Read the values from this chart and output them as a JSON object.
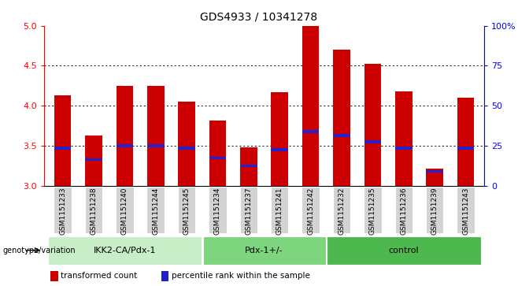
{
  "title": "GDS4933 / 10341278",
  "samples": [
    "GSM1151233",
    "GSM1151238",
    "GSM1151240",
    "GSM1151244",
    "GSM1151245",
    "GSM1151234",
    "GSM1151237",
    "GSM1151241",
    "GSM1151242",
    "GSM1151232",
    "GSM1151235",
    "GSM1151236",
    "GSM1151239",
    "GSM1151243"
  ],
  "bar_values": [
    4.13,
    3.63,
    4.25,
    4.25,
    4.05,
    3.82,
    3.48,
    4.17,
    5.0,
    4.7,
    4.52,
    4.18,
    3.22,
    4.1
  ],
  "percentile_values": [
    3.47,
    3.33,
    3.5,
    3.5,
    3.47,
    3.35,
    3.25,
    3.45,
    3.68,
    3.63,
    3.55,
    3.47,
    3.18,
    3.47
  ],
  "groups": [
    {
      "label": "IKK2-CA/Pdx-1",
      "start": 0,
      "end": 5,
      "color": "#c8eec8"
    },
    {
      "label": "Pdx-1+/-",
      "start": 5,
      "end": 9,
      "color": "#7dd67d"
    },
    {
      "label": "control",
      "start": 9,
      "end": 14,
      "color": "#4db84d"
    }
  ],
  "ylim_left": [
    3.0,
    5.0
  ],
  "ylim_right": [
    0,
    100
  ],
  "yticks_left": [
    3.0,
    3.5,
    4.0,
    4.5,
    5.0
  ],
  "yticks_right": [
    0,
    25,
    50,
    75,
    100
  ],
  "bar_color": "#cc0000",
  "percentile_color": "#2222cc",
  "bar_width": 0.55,
  "legend_items": [
    {
      "color": "#cc0000",
      "label": "transformed count"
    },
    {
      "color": "#2222cc",
      "label": "percentile rank within the sample"
    }
  ],
  "genotype_label": "genotype/variation"
}
